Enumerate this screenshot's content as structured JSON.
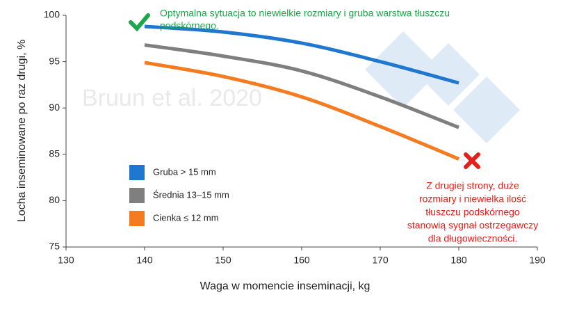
{
  "chart_data": {
    "type": "line",
    "x_label": "Waga w momencie inseminacji, kg",
    "y_label": "Locha inseminowane po raz drugi, %",
    "watermark": "Bruun et al. 2020",
    "x": [
      140,
      150,
      160,
      170,
      180
    ],
    "xlim": [
      130,
      190
    ],
    "xticks": [
      130,
      140,
      150,
      160,
      170,
      180,
      190
    ],
    "ylim": [
      75,
      100
    ],
    "yticks": [
      75,
      80,
      85,
      90,
      95,
      100
    ],
    "grid": false,
    "legend": "lower left",
    "series": [
      {
        "name": "Gruba > 15 mm",
        "color": "#1f77d0",
        "values": [
          98.8,
          98.2,
          97.0,
          95.0,
          92.7
        ]
      },
      {
        "name": "Średnia 13–15 mm",
        "color": "#7f7f7f",
        "values": [
          96.8,
          95.6,
          94.0,
          91.2,
          87.9
        ]
      },
      {
        "name": "Cienka ≤ 12 mm",
        "color": "#f47b20",
        "values": [
          94.9,
          93.4,
          91.2,
          88.0,
          84.5
        ]
      }
    ],
    "annotations": [
      {
        "lines": [
          "Optymalna sytuacja to niewielkie rozmiary i gruba warstwa tłuszczu",
          "podskórnego."
        ],
        "color": "#1aa84a"
      },
      {
        "lines": [
          "Z drugiej strony, duże",
          "rozmiary i niewielka ilość",
          "tłuszczu podskórnego",
          "stanowią sygnał ostrzegawczy",
          "dla długowieczności."
        ],
        "color": "#e0201b"
      }
    ]
  }
}
